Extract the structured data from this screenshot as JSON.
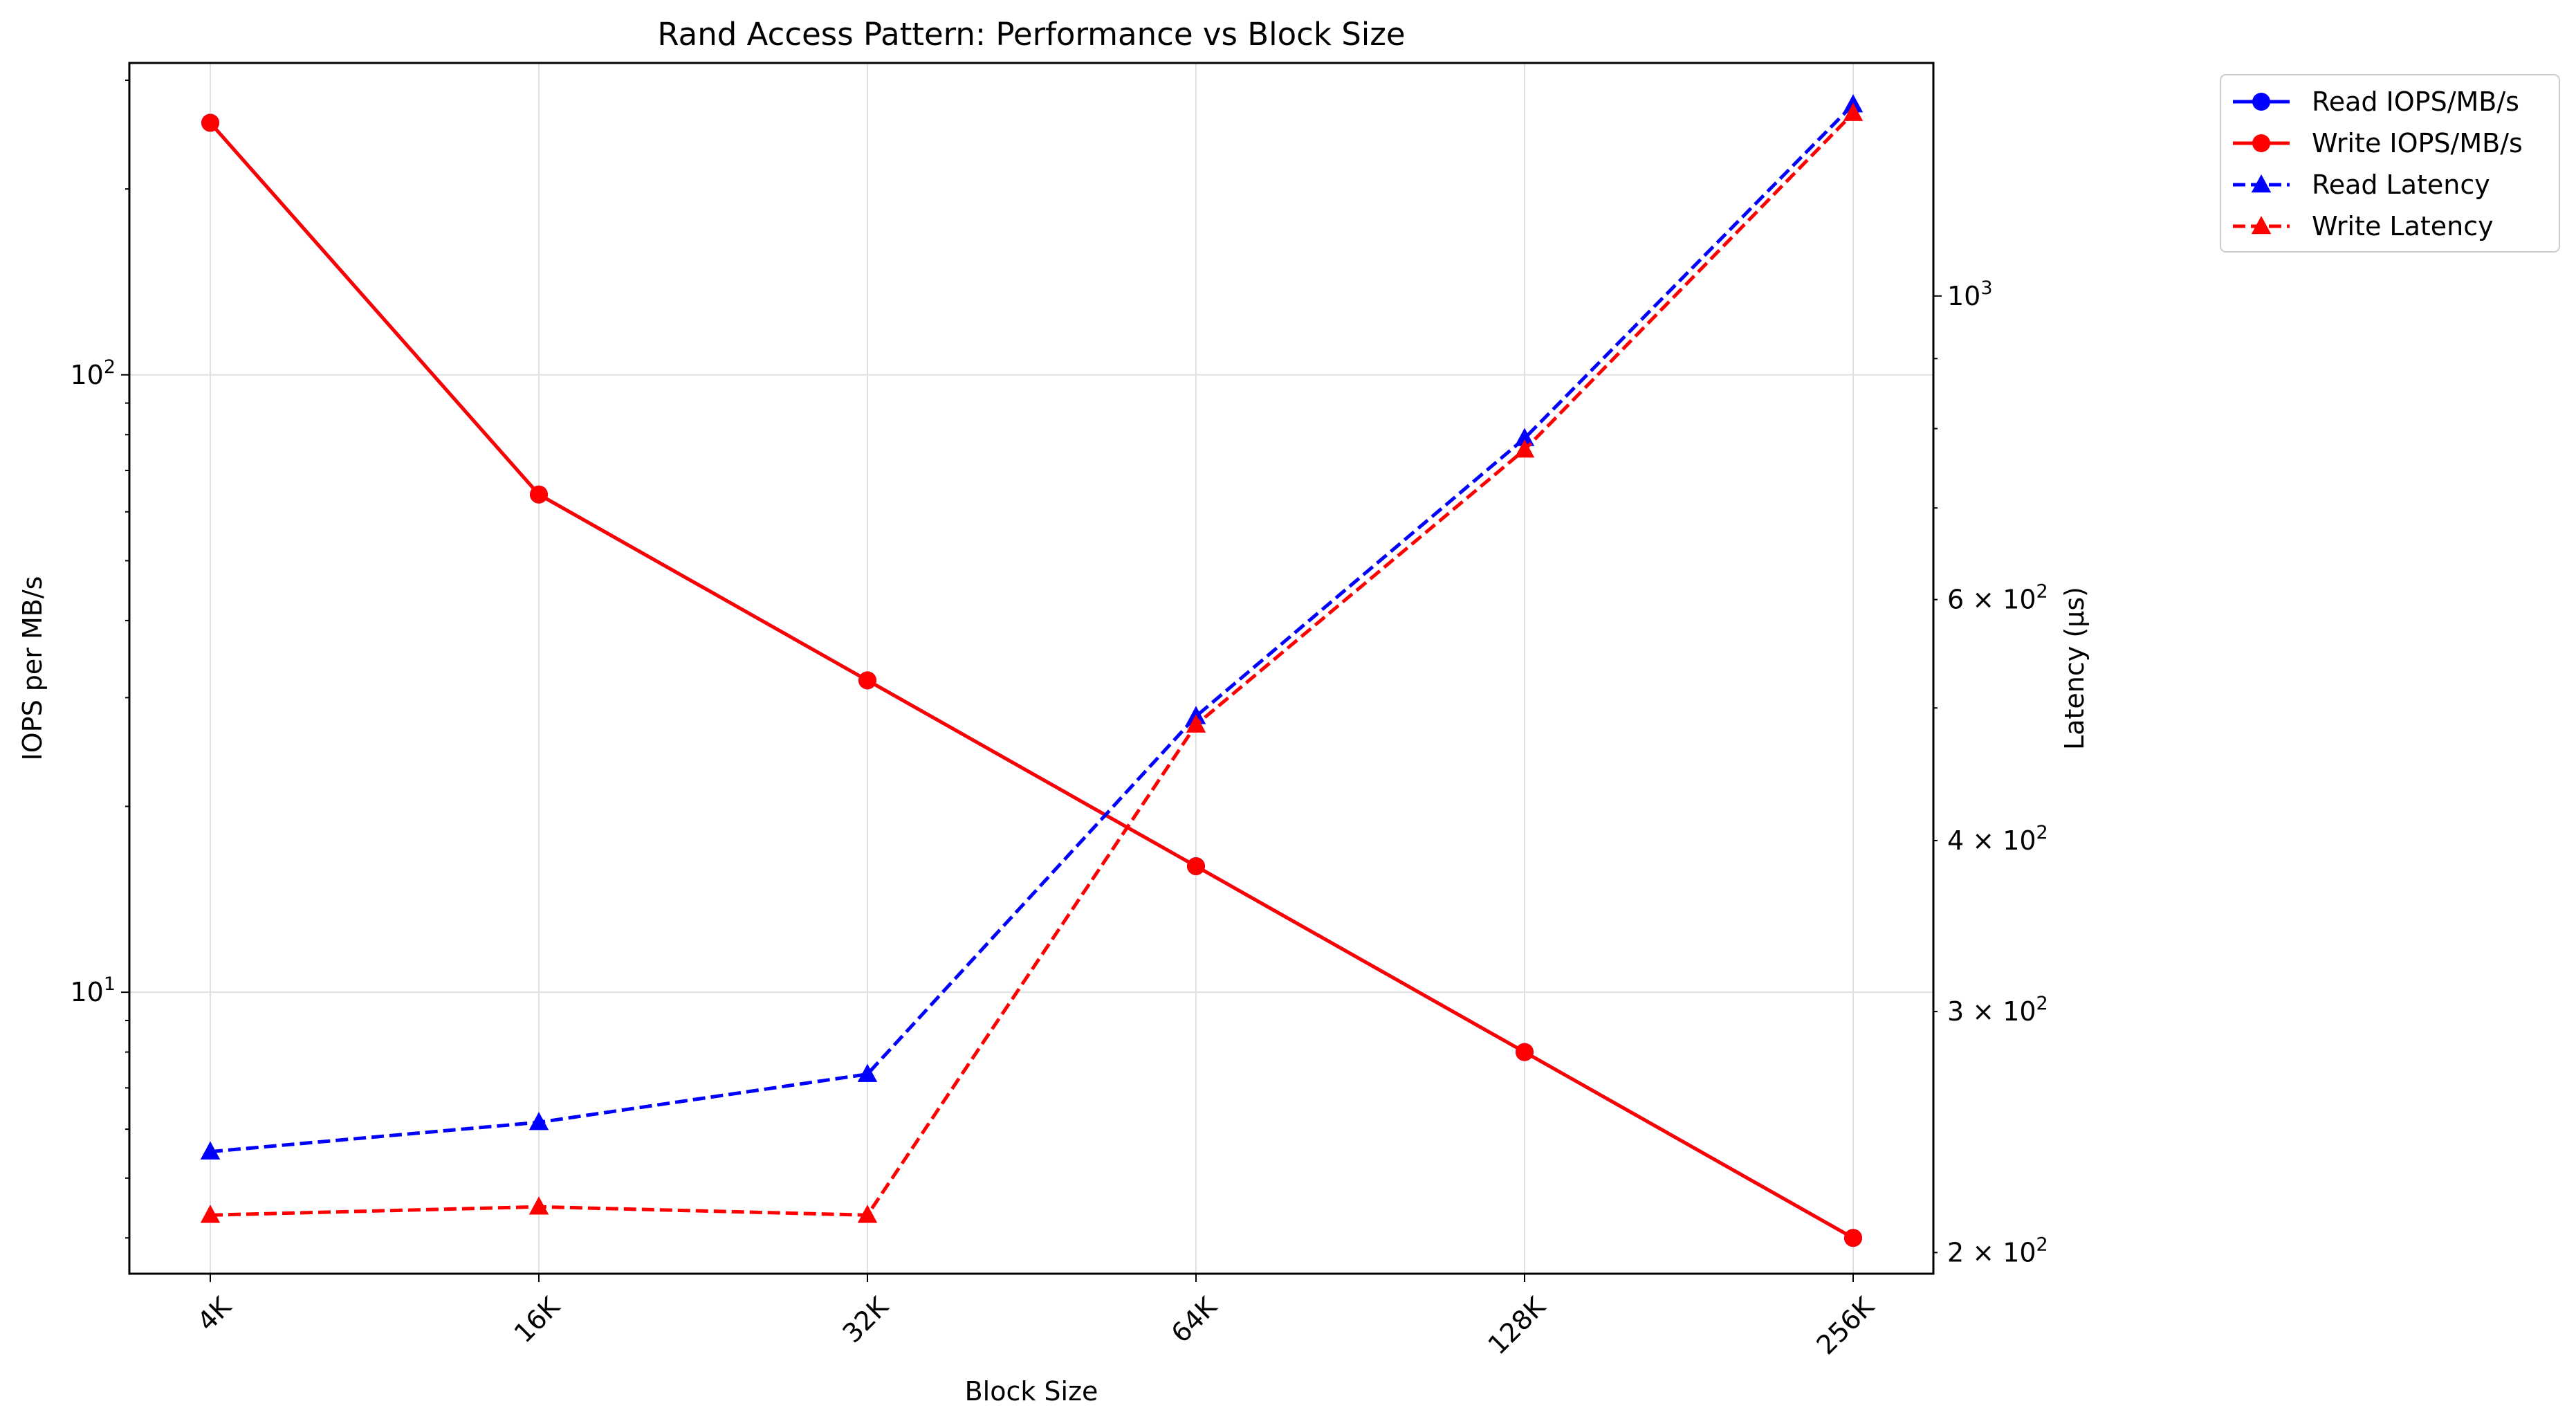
{
  "chart_data": {
    "type": "line",
    "title": "Rand Access Pattern: Performance vs Block Size",
    "xlabel": "Block Size",
    "ylabel_left": "IOPS per MB/s",
    "ylabel_right": "Latency (µs)",
    "categories": [
      "4K",
      "16K",
      "32K",
      "64K",
      "128K",
      "256K"
    ],
    "y_left": {
      "scale": "log",
      "lim": [
        3.5,
        320
      ],
      "ticks": [
        {
          "value": 10,
          "base": "10",
          "exp": "1"
        },
        {
          "value": 100,
          "base": "10",
          "exp": "2"
        }
      ]
    },
    "y_right": {
      "scale": "log",
      "lim": [
        193,
        1480
      ],
      "ticks": [
        {
          "value": 200,
          "mant": "2",
          "base": "10",
          "exp": "2"
        },
        {
          "value": 300,
          "mant": "3",
          "base": "10",
          "exp": "2"
        },
        {
          "value": 400,
          "mant": "4",
          "base": "10",
          "exp": "2"
        },
        {
          "value": 600,
          "mant": "6",
          "base": "10",
          "exp": "2"
        },
        {
          "value": 1000,
          "mant": "",
          "base": "10",
          "exp": "3"
        }
      ]
    },
    "grid": true,
    "legend_position": "outside-top-right",
    "series": [
      {
        "name": "Read IOPS/MB/s",
        "axis": "left",
        "color": "#0000ff",
        "linestyle": "solid",
        "marker": "circle",
        "values": [
          256,
          64,
          32,
          16,
          8,
          4
        ]
      },
      {
        "name": "Write IOPS/MB/s",
        "axis": "left",
        "color": "#ff0000",
        "linestyle": "solid",
        "marker": "circle",
        "values": [
          256,
          64,
          32,
          16,
          8,
          4
        ]
      },
      {
        "name": "Read Latency",
        "axis": "right",
        "color": "#0000ff",
        "linestyle": "dashed",
        "marker": "triangle",
        "values": [
          237,
          249,
          270,
          493,
          787,
          1380
        ]
      },
      {
        "name": "Write Latency",
        "axis": "right",
        "color": "#ff0000",
        "linestyle": "dashed",
        "marker": "triangle",
        "values": [
          213,
          216,
          213,
          486,
          772,
          1360
        ]
      }
    ]
  }
}
